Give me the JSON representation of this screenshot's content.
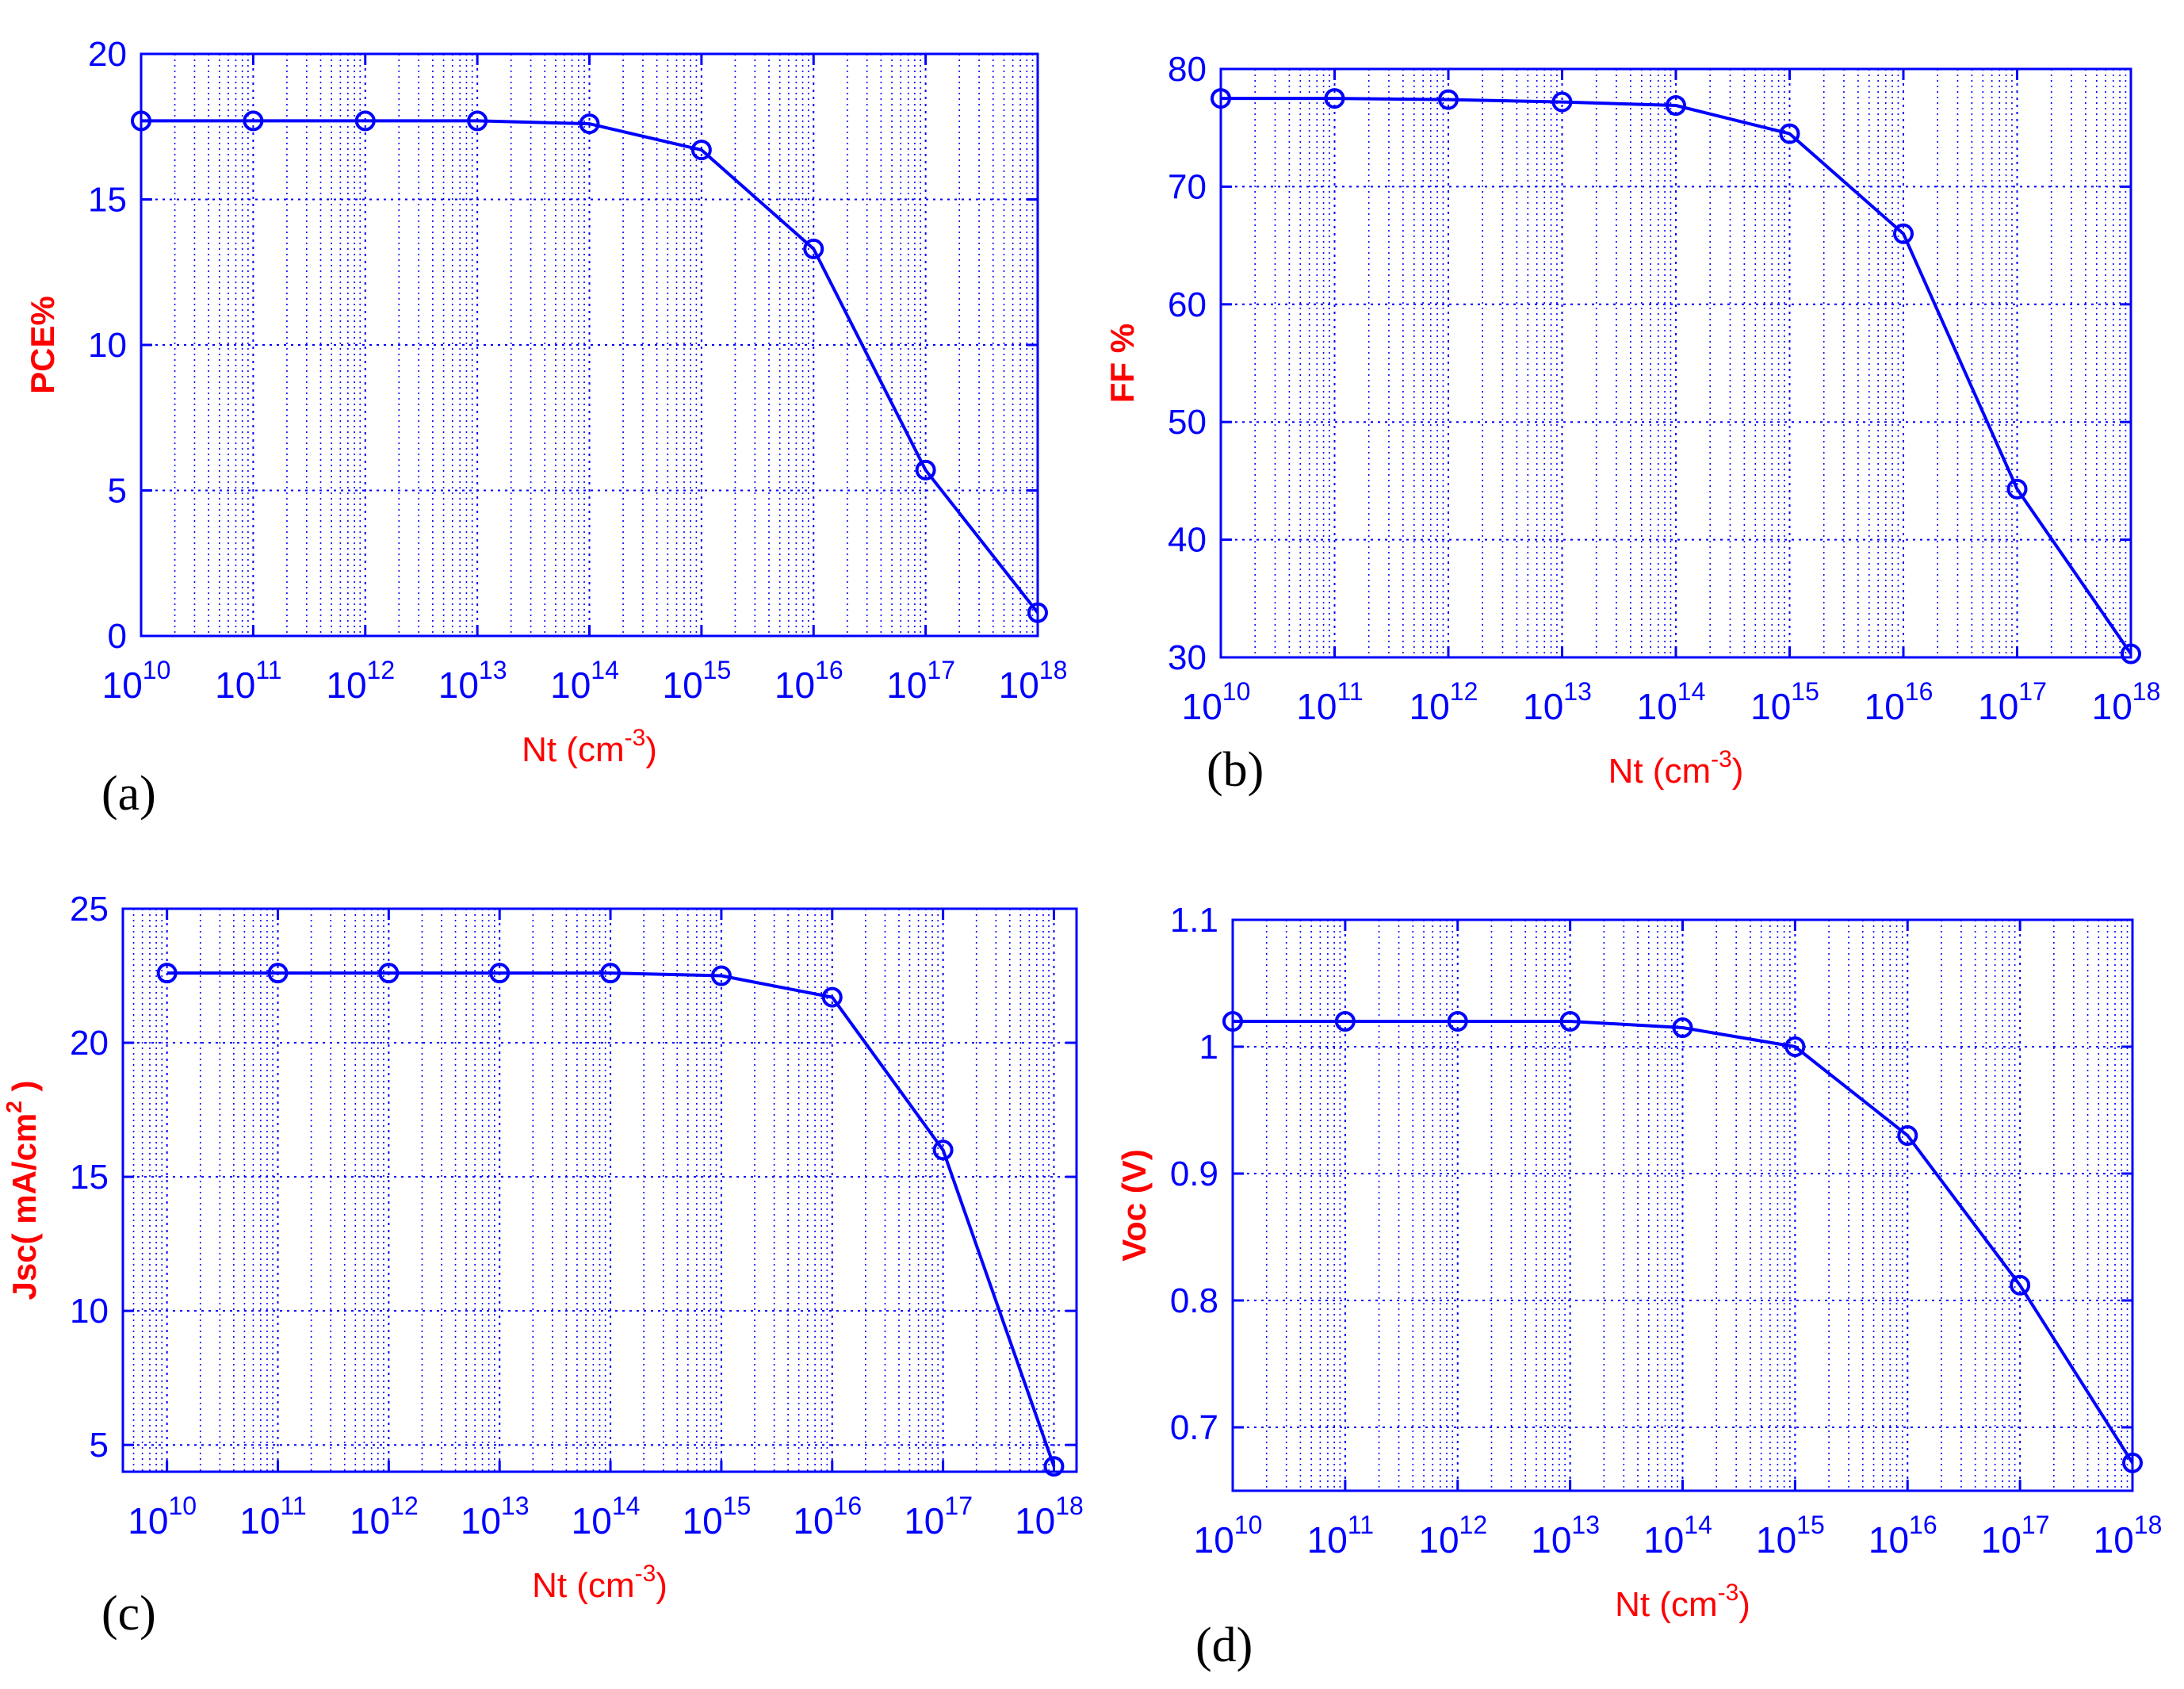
{
  "style": {
    "axis_color": "#0000FF",
    "grid_color": "#0000FF",
    "line_color": "#0000FF",
    "label_color": "#FF0000",
    "background": "#FFFFFF"
  },
  "captions": [
    "(a)",
    "(b)",
    "(c)",
    "(d)"
  ],
  "chart_data": [
    {
      "type": "line",
      "panel": "(a)",
      "xlabel": "Nt (cm-3)",
      "xlabel_base": "Nt (cm",
      "xlabel_sup": "-3",
      "xlabel_end": ")",
      "ylabel": "PCE%",
      "x_scale": "log",
      "xlim": [
        10000000000.0,
        1e+18
      ],
      "ylim": [
        0,
        20
      ],
      "x_ticks": [
        10000000000.0,
        100000000000.0,
        1000000000000.0,
        10000000000000.0,
        100000000000000.0,
        1000000000000000.0,
        1e+16,
        1e+17,
        1e+18
      ],
      "x_tick_labels": [
        {
          "base": "10",
          "exp": "10"
        },
        {
          "base": "10",
          "exp": "11"
        },
        {
          "base": "10",
          "exp": "12"
        },
        {
          "base": "10",
          "exp": "13"
        },
        {
          "base": "10",
          "exp": "14"
        },
        {
          "base": "10",
          "exp": "15"
        },
        {
          "base": "10",
          "exp": "16"
        },
        {
          "base": "10",
          "exp": "17"
        },
        {
          "base": "10",
          "exp": "18"
        }
      ],
      "y_ticks": [
        0,
        5,
        10,
        15,
        20
      ],
      "y_tick_labels": [
        "0",
        "5",
        "10",
        "15",
        "20"
      ],
      "grid": true,
      "marker": "circle",
      "series": [
        {
          "x": [
            10000000000.0,
            100000000000.0,
            1000000000000.0,
            10000000000000.0,
            100000000000000.0,
            1000000000000000.0,
            1e+16,
            1e+17,
            1e+18
          ],
          "y": [
            17.7,
            17.7,
            17.7,
            17.7,
            17.6,
            16.7,
            13.3,
            5.7,
            0.8
          ]
        }
      ]
    },
    {
      "type": "line",
      "panel": "(b)",
      "xlabel": "Nt (cm-3)",
      "xlabel_base": "Nt (cm",
      "xlabel_sup": "-3",
      "xlabel_end": ")",
      "ylabel": "FF %",
      "x_scale": "log",
      "xlim": [
        10000000000.0,
        1e+18
      ],
      "ylim": [
        30,
        80
      ],
      "x_ticks": [
        10000000000.0,
        100000000000.0,
        1000000000000.0,
        10000000000000.0,
        100000000000000.0,
        1000000000000000.0,
        1e+16,
        1e+17,
        1e+18
      ],
      "x_tick_labels": [
        {
          "base": "10",
          "exp": "10"
        },
        {
          "base": "10",
          "exp": "11"
        },
        {
          "base": "10",
          "exp": "12"
        },
        {
          "base": "10",
          "exp": "13"
        },
        {
          "base": "10",
          "exp": "14"
        },
        {
          "base": "10",
          "exp": "15"
        },
        {
          "base": "10",
          "exp": "16"
        },
        {
          "base": "10",
          "exp": "17"
        },
        {
          "base": "10",
          "exp": "18"
        }
      ],
      "y_ticks": [
        30,
        40,
        50,
        60,
        70,
        80
      ],
      "y_tick_labels": [
        "30",
        "40",
        "50",
        "60",
        "70",
        "80"
      ],
      "grid": true,
      "marker": "circle",
      "series": [
        {
          "x": [
            10000000000.0,
            100000000000.0,
            1000000000000.0,
            10000000000000.0,
            100000000000000.0,
            1000000000000000.0,
            1e+16,
            1e+17,
            1e+18
          ],
          "y": [
            77.5,
            77.5,
            77.4,
            77.2,
            76.9,
            74.5,
            66.0,
            44.3,
            30.3
          ]
        }
      ]
    },
    {
      "type": "line",
      "panel": "(c)",
      "xlabel": "Nt (cm-3)",
      "xlabel_base": "Nt (cm",
      "xlabel_sup": "-3",
      "xlabel_end": ")",
      "ylabel": "Jsc( mA/cm2 )",
      "ylabel_base": "Jsc( mA/cm",
      "ylabel_sup": "2",
      "ylabel_end": " )",
      "x_scale": "log",
      "xlim": [
        4000000000.0,
        1.6e+18
      ],
      "ylim": [
        4,
        25
      ],
      "x_ticks": [
        10000000000.0,
        100000000000.0,
        1000000000000.0,
        10000000000000.0,
        100000000000000.0,
        1000000000000000.0,
        1e+16,
        1e+17,
        1e+18
      ],
      "x_tick_labels": [
        {
          "base": "10",
          "exp": "10"
        },
        {
          "base": "10",
          "exp": "11"
        },
        {
          "base": "10",
          "exp": "12"
        },
        {
          "base": "10",
          "exp": "13"
        },
        {
          "base": "10",
          "exp": "14"
        },
        {
          "base": "10",
          "exp": "15"
        },
        {
          "base": "10",
          "exp": "16"
        },
        {
          "base": "10",
          "exp": "17"
        },
        {
          "base": "10",
          "exp": "18"
        }
      ],
      "y_ticks": [
        5,
        10,
        15,
        20,
        25
      ],
      "y_tick_labels": [
        "5",
        "10",
        "15",
        "20",
        "25"
      ],
      "grid": true,
      "marker": "circle",
      "series": [
        {
          "x": [
            10000000000.0,
            100000000000.0,
            1000000000000.0,
            10000000000000.0,
            100000000000000.0,
            1000000000000000.0,
            1e+16,
            1e+17,
            1e+18
          ],
          "y": [
            22.6,
            22.6,
            22.6,
            22.6,
            22.6,
            22.5,
            21.7,
            16.0,
            4.2
          ]
        }
      ]
    },
    {
      "type": "line",
      "panel": "(d)",
      "xlabel": "Nt (cm-3)",
      "xlabel_base": "Nt (cm",
      "xlabel_sup": "-3",
      "xlabel_end": ")",
      "ylabel": "Voc (V)",
      "x_scale": "log",
      "xlim": [
        10000000000.0,
        1e+18
      ],
      "ylim": [
        0.65,
        1.1
      ],
      "x_ticks": [
        10000000000.0,
        100000000000.0,
        1000000000000.0,
        10000000000000.0,
        100000000000000.0,
        1000000000000000.0,
        1e+16,
        1e+17,
        1e+18
      ],
      "x_tick_labels": [
        {
          "base": "10",
          "exp": "10"
        },
        {
          "base": "10",
          "exp": "11"
        },
        {
          "base": "10",
          "exp": "12"
        },
        {
          "base": "10",
          "exp": "13"
        },
        {
          "base": "10",
          "exp": "14"
        },
        {
          "base": "10",
          "exp": "15"
        },
        {
          "base": "10",
          "exp": "16"
        },
        {
          "base": "10",
          "exp": "17"
        },
        {
          "base": "10",
          "exp": "18"
        }
      ],
      "y_ticks": [
        0.7,
        0.8,
        0.9,
        1.0,
        1.1
      ],
      "y_tick_labels": [
        "0.7",
        "0.8",
        "0.9",
        "1",
        "1.1"
      ],
      "grid": true,
      "marker": "circle",
      "series": [
        {
          "x": [
            10000000000.0,
            100000000000.0,
            1000000000000.0,
            10000000000000.0,
            100000000000000.0,
            1000000000000000.0,
            1e+16,
            1e+17,
            1e+18
          ],
          "y": [
            1.02,
            1.02,
            1.02,
            1.02,
            1.015,
            1.0,
            0.93,
            0.812,
            0.672
          ]
        }
      ]
    }
  ]
}
